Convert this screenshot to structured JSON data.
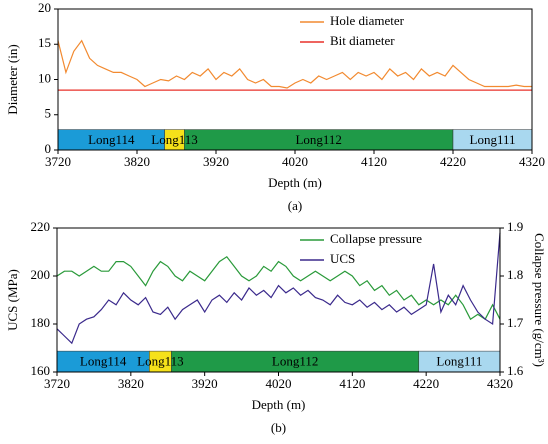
{
  "chart_data": [
    {
      "type": "line",
      "ylabel": "Diameter (in)",
      "xlabel": "Depth (m)",
      "caption": "(a)",
      "xlim": [
        3720,
        4320
      ],
      "xticks": [
        3720,
        3820,
        3920,
        4020,
        4120,
        4220,
        4320
      ],
      "ylim": [
        0,
        20
      ],
      "yticks": [
        0,
        5,
        10,
        15,
        20
      ],
      "x": [
        3720,
        3730,
        3740,
        3750,
        3760,
        3770,
        3780,
        3790,
        3800,
        3810,
        3820,
        3830,
        3840,
        3850,
        3860,
        3870,
        3880,
        3890,
        3900,
        3910,
        3920,
        3930,
        3940,
        3950,
        3960,
        3970,
        3980,
        3990,
        4000,
        4010,
        4020,
        4030,
        4040,
        4050,
        4060,
        4070,
        4080,
        4090,
        4100,
        4110,
        4120,
        4130,
        4140,
        4150,
        4160,
        4170,
        4180,
        4190,
        4200,
        4210,
        4220,
        4230,
        4240,
        4250,
        4260,
        4270,
        4280,
        4290,
        4300,
        4310,
        4320
      ],
      "series": [
        {
          "name": "Hole diameter",
          "color": "#f28a30",
          "values": [
            15.5,
            11,
            14,
            15.5,
            13,
            12,
            11.5,
            11,
            11,
            10.5,
            10,
            9,
            9.5,
            10,
            9.8,
            10.5,
            10,
            11,
            10.5,
            11.5,
            10,
            11,
            10.5,
            11.5,
            10,
            9.5,
            10,
            9,
            9,
            8.8,
            9.5,
            10,
            9.5,
            10.5,
            10,
            10.5,
            11,
            10,
            11,
            10.5,
            11,
            10,
            11.5,
            10.5,
            11,
            10,
            11.5,
            10.5,
            11,
            10.5,
            12,
            11,
            10,
            9.5,
            9,
            9,
            9,
            9,
            9.2,
            9,
            9
          ]
        },
        {
          "name": "Bit diameter",
          "color": "#e8302a",
          "x": [
            3720,
            4320
          ],
          "values": [
            8.5,
            8.5
          ]
        }
      ],
      "formations": [
        {
          "name": "Long114",
          "start": 3720,
          "end": 3855,
          "color": "#1b9bd7"
        },
        {
          "name": "Long113",
          "start": 3855,
          "end": 3880,
          "color": "#f5e11a"
        },
        {
          "name": "Long112",
          "start": 3880,
          "end": 4220,
          "color": "#1f9a48"
        },
        {
          "name": "Long111",
          "start": 4220,
          "end": 4320,
          "color": "#a9d8ef"
        }
      ]
    },
    {
      "type": "line",
      "ylabel": "UCS (MPa)",
      "y2label": "Collapse pressure (g/cm³)",
      "xlabel": "Depth (m)",
      "caption": "(b)",
      "xlim": [
        3720,
        4320
      ],
      "xticks": [
        3720,
        3820,
        3920,
        4020,
        4120,
        4220,
        4320
      ],
      "ylim": [
        160,
        220
      ],
      "yticks": [
        160,
        180,
        200,
        220
      ],
      "y2lim": [
        1.6,
        1.9
      ],
      "y2ticks": [
        1.6,
        1.7,
        1.8,
        1.9
      ],
      "x": [
        3720,
        3730,
        3740,
        3750,
        3760,
        3770,
        3780,
        3790,
        3800,
        3810,
        3820,
        3830,
        3840,
        3850,
        3860,
        3870,
        3880,
        3890,
        3900,
        3910,
        3920,
        3930,
        3940,
        3950,
        3960,
        3970,
        3980,
        3990,
        4000,
        4010,
        4020,
        4030,
        4040,
        4050,
        4060,
        4070,
        4080,
        4090,
        4100,
        4110,
        4120,
        4130,
        4140,
        4150,
        4160,
        4170,
        4180,
        4190,
        4200,
        4210,
        4220,
        4230,
        4240,
        4250,
        4260,
        4270,
        4280,
        4290,
        4300,
        4310,
        4320
      ],
      "series": [
        {
          "name": "Collapse pressure",
          "color": "#2a9a3a",
          "axis": "y2",
          "values": [
            1.8,
            1.81,
            1.81,
            1.8,
            1.81,
            1.82,
            1.81,
            1.81,
            1.83,
            1.83,
            1.82,
            1.8,
            1.78,
            1.81,
            1.83,
            1.82,
            1.8,
            1.79,
            1.81,
            1.8,
            1.79,
            1.81,
            1.83,
            1.84,
            1.82,
            1.8,
            1.79,
            1.8,
            1.82,
            1.81,
            1.83,
            1.82,
            1.8,
            1.79,
            1.8,
            1.81,
            1.8,
            1.79,
            1.8,
            1.81,
            1.8,
            1.78,
            1.79,
            1.77,
            1.78,
            1.76,
            1.77,
            1.75,
            1.76,
            1.74,
            1.75,
            1.74,
            1.75,
            1.74,
            1.76,
            1.74,
            1.71,
            1.72,
            1.71,
            1.74,
            1.71
          ]
        },
        {
          "name": "UCS",
          "color": "#3b2a8c",
          "values": [
            178,
            175,
            172,
            180,
            182,
            183,
            186,
            190,
            188,
            193,
            190,
            188,
            191,
            185,
            184,
            187,
            182,
            186,
            188,
            190,
            185,
            190,
            192,
            189,
            193,
            190,
            195,
            192,
            194,
            191,
            196,
            193,
            195,
            192,
            194,
            191,
            190,
            188,
            192,
            189,
            188,
            190,
            187,
            189,
            186,
            188,
            185,
            187,
            184,
            186,
            188,
            205,
            185,
            192,
            188,
            196,
            190,
            185,
            182,
            180,
            218
          ]
        }
      ],
      "formations": [
        {
          "name": "Long114",
          "start": 3720,
          "end": 3845,
          "color": "#1b9bd7"
        },
        {
          "name": "Long113",
          "start": 3845,
          "end": 3875,
          "color": "#f5e11a"
        },
        {
          "name": "Long112",
          "start": 3875,
          "end": 4210,
          "color": "#1f9a48"
        },
        {
          "name": "Long111",
          "start": 4210,
          "end": 4320,
          "color": "#a9d8ef"
        }
      ]
    }
  ]
}
